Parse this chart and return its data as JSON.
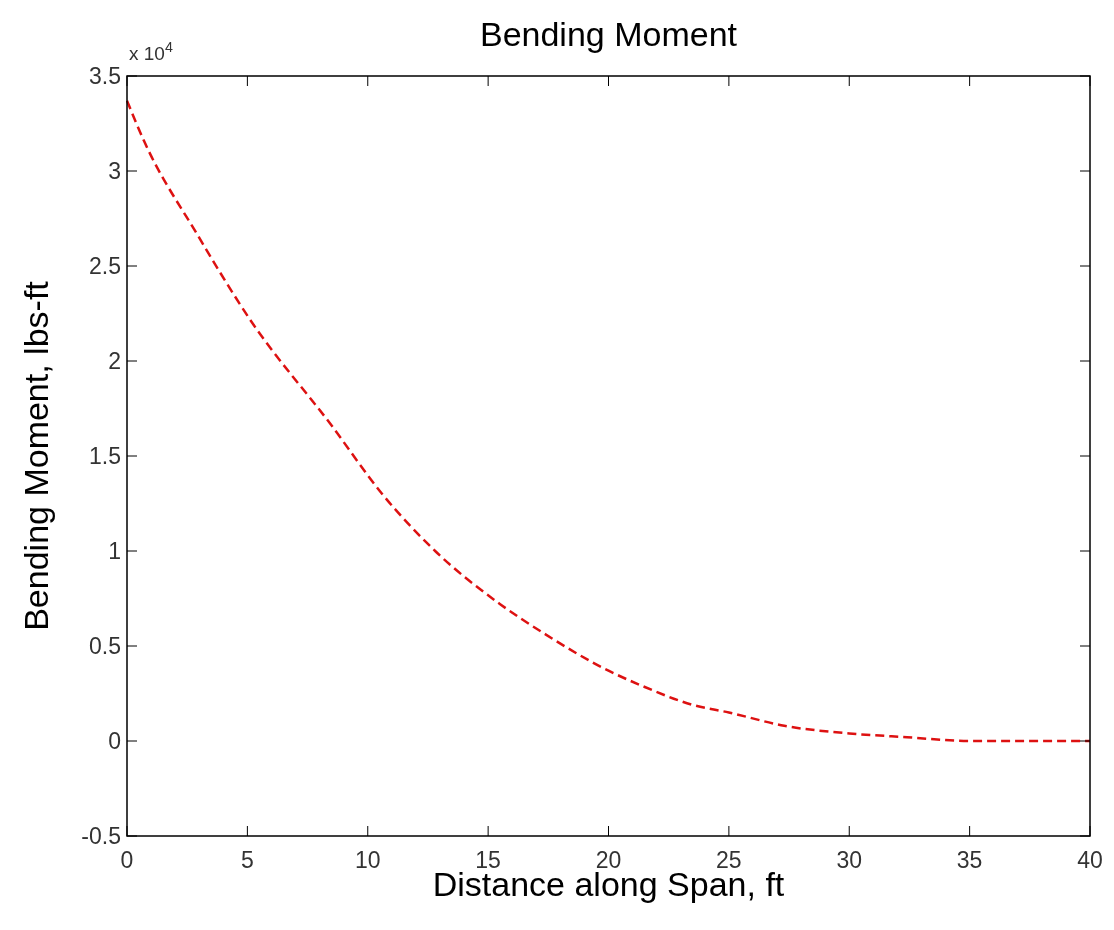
{
  "chart_data": {
    "type": "line",
    "title": "Bending Moment",
    "xlabel": "Distance along Span, ft",
    "ylabel": "Bending Moment, lbs-ft",
    "annotations": [
      "x 10$^{4}$"
    ],
    "x": [
      0,
      0.7,
      2.9,
      5.1,
      8.5,
      10.6,
      12.8,
      15.5,
      17.4,
      20,
      21.4,
      23.5,
      25,
      27.3,
      30,
      32.4,
      35,
      40
    ],
    "series": [
      {
        "color": "#dd1111",
        "values": [
          3.37,
          3.16,
          2.67,
          2.22,
          1.66,
          1.3,
          1.0,
          0.72,
          0.56,
          0.37,
          0.29,
          0.19,
          0.15,
          0.08,
          0.04,
          0.02,
          0,
          0
        ]
      }
    ],
    "xlim": [
      0,
      40
    ],
    "xticks": [
      0,
      5,
      10,
      15,
      20,
      25,
      30,
      35,
      40
    ],
    "ylim": [
      -0.5,
      3.5
    ],
    "yticks": [
      -0.5,
      0,
      0.5,
      1,
      1.5,
      2,
      2.5,
      3,
      3.5
    ],
    "line_style": "dashed",
    "grid": false
  }
}
